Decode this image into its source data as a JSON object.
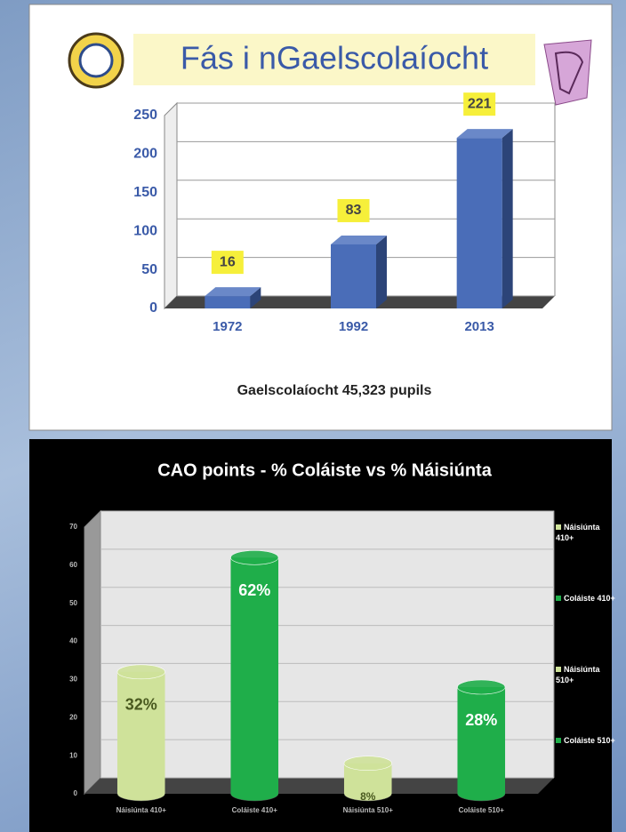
{
  "chart_data": [
    {
      "type": "bar",
      "title": "Fás i nGaelscolaíocht",
      "categories": [
        "1972",
        "1992",
        "2013"
      ],
      "values": [
        16,
        83,
        221
      ],
      "color": "#4a6db8",
      "ylim": [
        0,
        250
      ],
      "yticks": [
        0,
        50,
        100,
        150,
        200,
        250
      ],
      "grid": true,
      "caption": "Gaelscolaíocht 45,323 pupils"
    },
    {
      "type": "cylinder",
      "title": "CAO points  - % Coláiste   vs  % Náisiúnta",
      "categories": [
        "Náisiúnta 410+",
        "Coláiste 410+",
        "Náisiúnta 510+",
        "Coláiste 510+"
      ],
      "values": [
        32,
        62,
        8,
        28
      ],
      "value_labels": [
        "32%",
        "62%",
        "8%",
        "28%"
      ],
      "colors": [
        "#cfe29a",
        "#1fae4a",
        "#cfe29a",
        "#1fae4a"
      ],
      "value_label_colors": [
        "#4a5a20",
        "#ffffff",
        "#4a5a20",
        "#ffffff"
      ],
      "ylim": [
        0,
        70
      ],
      "yticks": [
        0,
        10,
        20,
        30,
        40,
        50,
        60,
        70
      ],
      "grid": true,
      "legend": "right"
    }
  ]
}
